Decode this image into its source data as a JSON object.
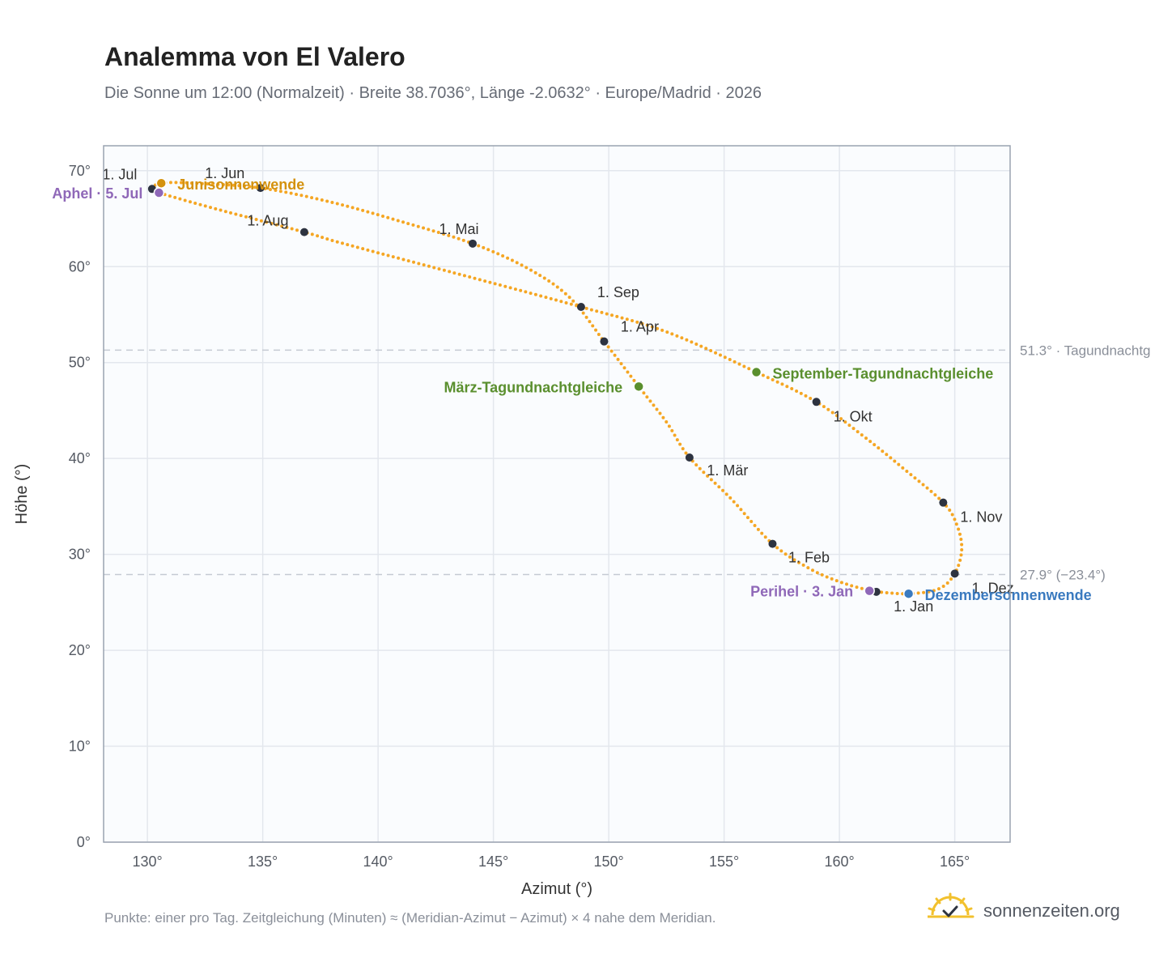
{
  "title": "Analemma von El Valero",
  "subtitle": "Die Sonne um 12:00 (Normalzeit) · Breite 38.7036°, Länge -2.0632° · Europe/Madrid · 2026",
  "footnote": "Punkte: einer pro Tag. Zeitgleichung (Minuten) ≈ (Meridian-Azimut − Azimut) × 4 nahe dem Meridian.",
  "brand": {
    "text": "sonnenzeiten.org",
    "icon": "sun-check-icon"
  },
  "colors": {
    "curve": "#f5a623",
    "month_point": "#2d3340",
    "solstice_june": "#d4920e",
    "solstice_dec": "#3a7abf",
    "equinox": "#5a8f2e",
    "apsis": "#8f68b8",
    "grid": "#e3e7ed",
    "plot_bg": "#fafcfe",
    "frame": "#9aa3b0",
    "reference": "#c5cad3"
  },
  "chart_data": {
    "type": "scatter",
    "xlabel": "Azimut (°)",
    "ylabel": "Höhe (°)",
    "xlim": [
      128.1,
      167.4
    ],
    "ylim": [
      0,
      72.6
    ],
    "xticks": [
      130,
      135,
      140,
      145,
      150,
      155,
      160,
      165
    ],
    "yticks": [
      0,
      10,
      20,
      30,
      40,
      50,
      60,
      70
    ],
    "tick_suffix": "°",
    "grid": true,
    "reference_lines": [
      {
        "y": 51.3,
        "label": "51.3° · Tagundnachtg"
      },
      {
        "y": 27.9,
        "label": "27.9° (−23.4°)"
      }
    ],
    "month_points": [
      {
        "label": "1. Jan",
        "azimuth": 161.6,
        "altitude": 26.1
      },
      {
        "label": "1. Feb",
        "azimuth": 157.1,
        "altitude": 31.1
      },
      {
        "label": "1. Mär",
        "azimuth": 153.5,
        "altitude": 40.1
      },
      {
        "label": "1. Apr",
        "azimuth": 149.8,
        "altitude": 52.2
      },
      {
        "label": "1. Mai",
        "azimuth": 144.1,
        "altitude": 62.4
      },
      {
        "label": "1. Jun",
        "azimuth": 134.9,
        "altitude": 68.2
      },
      {
        "label": "1. Jul",
        "azimuth": 130.2,
        "altitude": 68.1
      },
      {
        "label": "1. Aug",
        "azimuth": 136.8,
        "altitude": 63.6
      },
      {
        "label": "1. Sep",
        "azimuth": 148.8,
        "altitude": 55.8
      },
      {
        "label": "1. Okt",
        "azimuth": 159.0,
        "altitude": 45.9
      },
      {
        "label": "1. Nov",
        "azimuth": 164.5,
        "altitude": 35.4
      },
      {
        "label": "1. Dez",
        "azimuth": 165.0,
        "altitude": 28.0
      }
    ],
    "special_points": [
      {
        "label": "Junisonnenwende",
        "kind": "solstice_june",
        "azimuth": 130.6,
        "altitude": 68.7
      },
      {
        "label": "Dezembersonnenwende",
        "kind": "solstice_dec",
        "azimuth": 163.0,
        "altitude": 25.9
      },
      {
        "label": "März-Tagundnachtgleiche",
        "kind": "equinox",
        "azimuth": 151.3,
        "altitude": 47.5
      },
      {
        "label": "September-Tagundnachtgleiche",
        "kind": "equinox",
        "azimuth": 156.4,
        "altitude": 49.0
      },
      {
        "label": "Aphel · 5. Jul",
        "kind": "apsis",
        "azimuth": 130.5,
        "altitude": 67.7
      },
      {
        "label": "Perihel · 3. Jan",
        "kind": "apsis",
        "azimuth": 161.3,
        "altitude": 26.2
      }
    ],
    "path": [
      [
        161.6,
        26.1
      ],
      [
        163.0,
        25.9
      ],
      [
        164.3,
        26.4
      ],
      [
        165.0,
        28.0
      ],
      [
        165.3,
        30.5
      ],
      [
        165.1,
        33.0
      ],
      [
        164.5,
        35.4
      ],
      [
        162.7,
        39.1
      ],
      [
        161.0,
        42.4
      ],
      [
        159.0,
        45.9
      ],
      [
        156.4,
        49.0
      ],
      [
        152.5,
        53.2
      ],
      [
        148.8,
        55.8
      ],
      [
        144.0,
        58.9
      ],
      [
        138.5,
        62.4
      ],
      [
        136.8,
        63.6
      ],
      [
        133.0,
        66.0
      ],
      [
        130.5,
        67.7
      ],
      [
        130.2,
        68.1
      ],
      [
        130.6,
        68.7
      ],
      [
        132.0,
        68.7
      ],
      [
        134.9,
        68.2
      ],
      [
        138.0,
        66.7
      ],
      [
        141.0,
        64.7
      ],
      [
        144.1,
        62.4
      ],
      [
        146.5,
        59.8
      ],
      [
        148.3,
        56.8
      ],
      [
        149.8,
        52.2
      ],
      [
        151.3,
        47.5
      ],
      [
        152.5,
        43.8
      ],
      [
        153.5,
        40.1
      ],
      [
        155.3,
        35.8
      ],
      [
        157.1,
        31.1
      ],
      [
        158.8,
        28.4
      ],
      [
        160.3,
        26.9
      ],
      [
        161.6,
        26.1
      ]
    ]
  }
}
